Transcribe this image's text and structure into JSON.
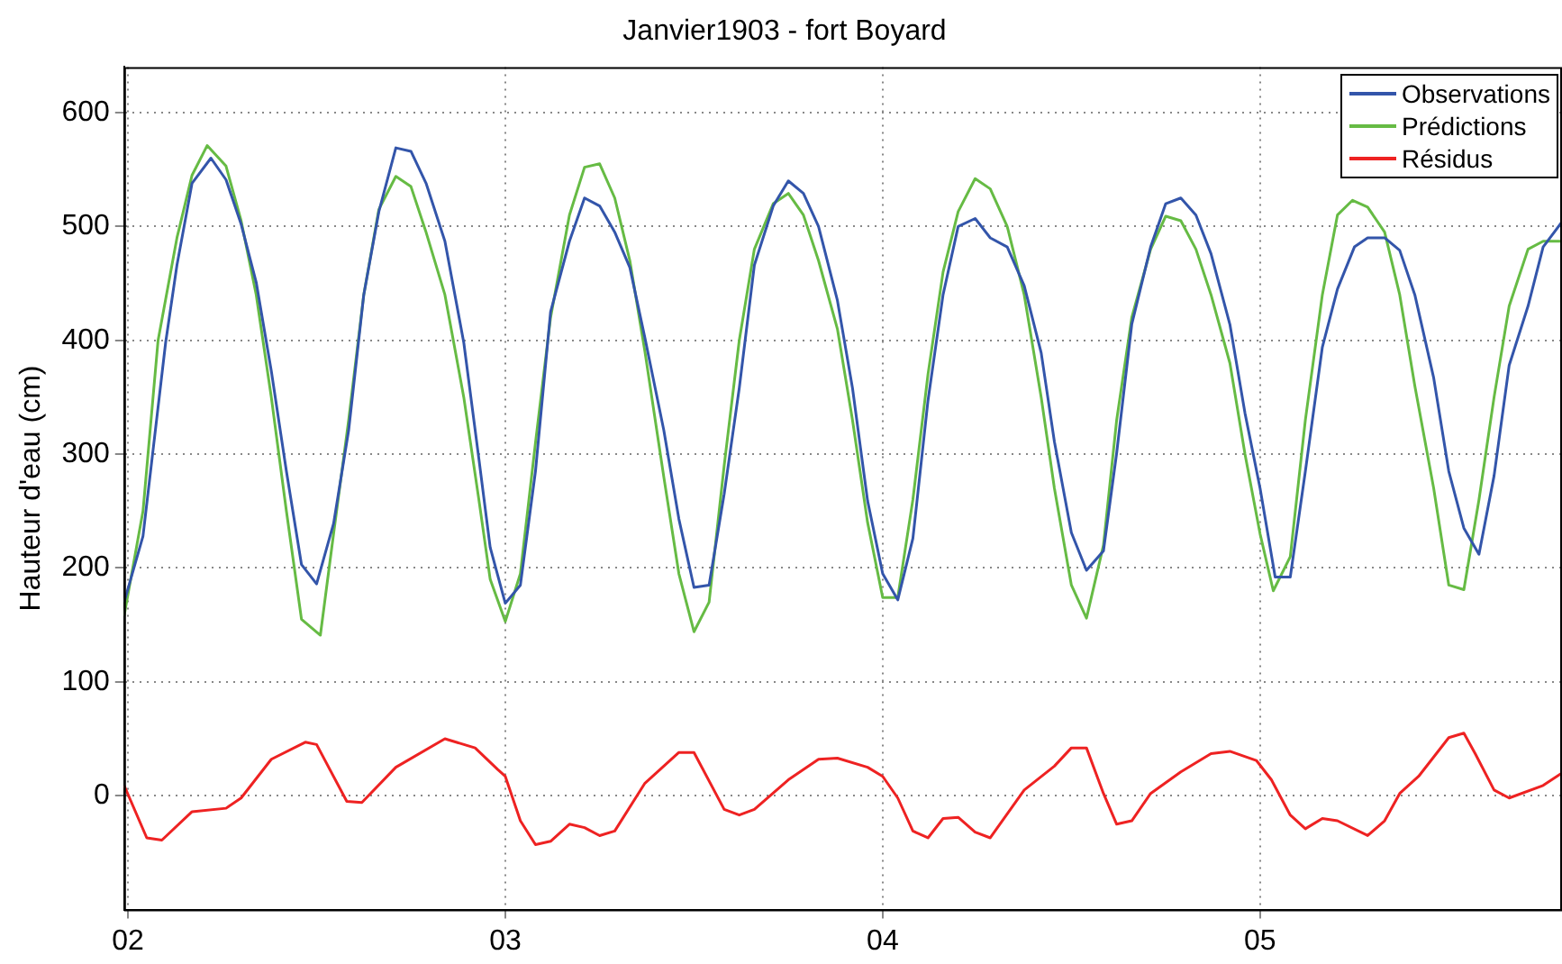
{
  "chart_data": {
    "type": "line",
    "title": "Janvier1903 - fort Boyard",
    "ylabel": "Hauteur d'eau (cm)",
    "xlim": [
      1.99,
      5.8
    ],
    "xticks": [
      {
        "value": 2,
        "label": "02"
      },
      {
        "value": 3,
        "label": "03"
      },
      {
        "value": 4,
        "label": "04"
      },
      {
        "value": 5,
        "label": "05"
      }
    ],
    "ylim": [
      -100,
      640
    ],
    "yticks": [
      0,
      100,
      200,
      300,
      400,
      500,
      600
    ],
    "grid": true,
    "legend": "top right",
    "marker": "none",
    "line_style": "solid",
    "series": [
      {
        "name": "Observations",
        "color": "#3355aa",
        "x": [
          1.99,
          2.04,
          2.1,
          2.13,
          2.17,
          2.22,
          2.26,
          2.3,
          2.34,
          2.38,
          2.42,
          2.46,
          2.5,
          2.545,
          2.585,
          2.625,
          2.665,
          2.71,
          2.75,
          2.79,
          2.84,
          2.89,
          2.93,
          2.96,
          3.0,
          3.04,
          3.08,
          3.12,
          3.17,
          3.21,
          3.25,
          3.29,
          3.33,
          3.37,
          3.42,
          3.46,
          3.5,
          3.54,
          3.58,
          3.62,
          3.66,
          3.71,
          3.75,
          3.79,
          3.83,
          3.88,
          3.92,
          3.96,
          4.0,
          4.04,
          4.08,
          4.12,
          4.16,
          4.2,
          4.245,
          4.285,
          4.33,
          4.375,
          4.42,
          4.455,
          4.5,
          4.54,
          4.585,
          4.62,
          4.66,
          4.71,
          4.75,
          4.79,
          4.83,
          4.87,
          4.92,
          4.96,
          5.0,
          5.04,
          5.08,
          5.12,
          5.165,
          5.205,
          5.25,
          5.285,
          5.33,
          5.37,
          5.41,
          5.46,
          5.5,
          5.54,
          5.58,
          5.62,
          5.66,
          5.71,
          5.75,
          5.8
        ],
        "values": [
          170,
          228,
          398,
          466,
          538,
          560,
          541,
          502,
          451,
          373,
          285,
          203,
          186,
          239,
          321,
          440,
          513,
          569,
          566,
          538,
          487,
          398,
          296,
          218,
          169,
          185,
          285,
          425,
          487,
          525,
          518,
          495,
          464,
          402,
          321,
          243,
          183,
          185,
          265,
          358,
          466,
          518,
          540,
          529,
          500,
          435,
          358,
          259,
          195,
          172,
          226,
          347,
          440,
          500,
          507,
          490,
          482,
          448,
          389,
          311,
          231,
          198,
          215,
          301,
          414,
          482,
          520,
          525,
          510,
          476,
          414,
          336,
          270,
          192,
          192,
          285,
          394,
          445,
          482,
          490,
          490,
          479,
          440,
          367,
          285,
          235,
          212,
          281,
          378,
          430,
          482,
          504
        ]
      },
      {
        "name": "Prédictions",
        "color": "#66bb44",
        "x": [
          1.99,
          2.04,
          2.08,
          2.13,
          2.17,
          2.21,
          2.26,
          2.3,
          2.34,
          2.38,
          2.42,
          2.46,
          2.51,
          2.545,
          2.585,
          2.625,
          2.665,
          2.71,
          2.75,
          2.79,
          2.84,
          2.89,
          2.93,
          2.96,
          3.0,
          3.04,
          3.08,
          3.12,
          3.17,
          3.21,
          3.25,
          3.29,
          3.33,
          3.37,
          3.42,
          3.46,
          3.5,
          3.54,
          3.58,
          3.62,
          3.66,
          3.71,
          3.75,
          3.79,
          3.83,
          3.88,
          3.92,
          3.96,
          4.0,
          4.04,
          4.08,
          4.12,
          4.16,
          4.2,
          4.245,
          4.285,
          4.33,
          4.375,
          4.42,
          4.455,
          4.5,
          4.54,
          4.585,
          4.62,
          4.66,
          4.71,
          4.75,
          4.79,
          4.83,
          4.87,
          4.92,
          4.96,
          5.0,
          5.035,
          5.08,
          5.12,
          5.165,
          5.205,
          5.245,
          5.285,
          5.33,
          5.37,
          5.41,
          5.46,
          5.5,
          5.54,
          5.58,
          5.62,
          5.66,
          5.71,
          5.75,
          5.8
        ],
        "values": [
          158,
          250,
          400,
          490,
          545,
          571,
          553,
          505,
          440,
          350,
          250,
          155,
          141,
          230,
          330,
          440,
          515,
          544,
          535,
          495,
          440,
          350,
          260,
          190,
          153,
          195,
          310,
          420,
          510,
          552,
          555,
          525,
          470,
          390,
          280,
          195,
          144,
          170,
          290,
          400,
          480,
          520,
          529,
          510,
          470,
          410,
          330,
          240,
          174,
          174,
          260,
          370,
          460,
          513,
          542,
          533,
          500,
          440,
          350,
          270,
          185,
          156,
          220,
          330,
          420,
          480,
          509,
          505,
          480,
          440,
          380,
          300,
          230,
          180,
          210,
          330,
          440,
          510,
          523,
          517,
          495,
          440,
          360,
          270,
          185,
          181,
          260,
          350,
          430,
          480,
          487,
          487
        ]
      },
      {
        "name": "Résidus",
        "color": "#ee2222",
        "x": [
          1.99,
          2.05,
          2.09,
          2.17,
          2.26,
          2.3,
          2.38,
          2.47,
          2.5,
          2.58,
          2.62,
          2.71,
          2.84,
          2.92,
          2.98,
          3.0,
          3.04,
          3.08,
          3.12,
          3.17,
          3.21,
          3.25,
          3.29,
          3.37,
          3.46,
          3.5,
          3.58,
          3.62,
          3.66,
          3.75,
          3.83,
          3.88,
          3.96,
          4.0,
          4.04,
          4.08,
          4.12,
          4.16,
          4.2,
          4.245,
          4.285,
          4.375,
          4.455,
          4.5,
          4.54,
          4.585,
          4.62,
          4.66,
          4.71,
          4.79,
          4.87,
          4.92,
          4.99,
          5.03,
          5.08,
          5.12,
          5.165,
          5.205,
          5.285,
          5.33,
          5.37,
          5.42,
          5.5,
          5.54,
          5.57,
          5.62,
          5.66,
          5.75,
          5.8
        ],
        "values": [
          9,
          -37,
          -39,
          -14,
          -11,
          -2,
          32,
          47,
          45,
          -5,
          -6,
          25,
          50,
          42,
          23,
          17,
          -22,
          -43,
          -40,
          -25,
          -28,
          -35,
          -31,
          11,
          38,
          38,
          -12,
          -17,
          -12,
          14,
          32,
          33,
          25,
          17,
          -2,
          -31,
          -37,
          -20,
          -19,
          -32,
          -37,
          5,
          26,
          42,
          42,
          2,
          -25,
          -22,
          2,
          21,
          37,
          39,
          31,
          14,
          -17,
          -29,
          -20,
          -22,
          -35,
          -22,
          2,
          17,
          51,
          55,
          37,
          5,
          -2,
          9,
          20
        ]
      }
    ]
  }
}
